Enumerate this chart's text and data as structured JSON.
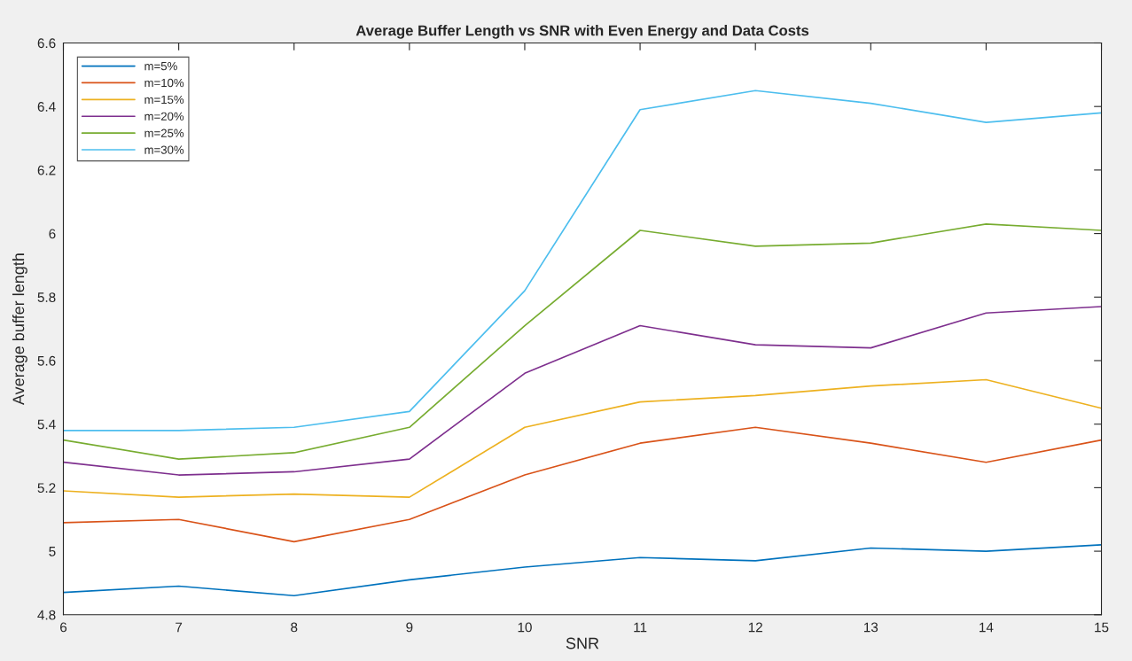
{
  "chart_data": {
    "type": "line",
    "title": "Average Buffer Length vs SNR with Even Energy and Data Costs",
    "xlabel": "SNR",
    "ylabel": "Average buffer length",
    "x": [
      6,
      7,
      8,
      9,
      10,
      11,
      12,
      13,
      14,
      15
    ],
    "series": [
      {
        "name": "m=5%",
        "color": "#0072bd",
        "values": [
          4.87,
          4.89,
          4.86,
          4.91,
          4.95,
          4.98,
          4.97,
          5.01,
          5.0,
          5.02
        ]
      },
      {
        "name": "m=10%",
        "color": "#d95319",
        "values": [
          5.09,
          5.1,
          5.03,
          5.1,
          5.24,
          5.34,
          5.39,
          5.34,
          5.28,
          5.35
        ]
      },
      {
        "name": "m=15%",
        "color": "#edb120",
        "values": [
          5.19,
          5.17,
          5.18,
          5.17,
          5.39,
          5.47,
          5.49,
          5.52,
          5.54,
          5.45
        ]
      },
      {
        "name": "m=20%",
        "color": "#7e2f8e",
        "values": [
          5.28,
          5.24,
          5.25,
          5.29,
          5.56,
          5.71,
          5.65,
          5.64,
          5.75,
          5.77
        ]
      },
      {
        "name": "m=25%",
        "color": "#77ac30",
        "values": [
          5.35,
          5.29,
          5.31,
          5.39,
          5.71,
          6.01,
          5.96,
          5.97,
          6.03,
          6.01
        ]
      },
      {
        "name": "m=30%",
        "color": "#4dbeee",
        "values": [
          5.38,
          5.38,
          5.39,
          5.44,
          5.82,
          6.39,
          6.45,
          6.41,
          6.35,
          6.38
        ]
      }
    ],
    "xlim": [
      6,
      15
    ],
    "ylim": [
      4.8,
      6.6
    ],
    "xticks": [
      6,
      7,
      8,
      9,
      10,
      11,
      12,
      13,
      14,
      15
    ],
    "yticks": [
      4.8,
      5,
      5.2,
      5.4,
      5.6,
      5.8,
      6,
      6.2,
      6.4,
      6.6
    ],
    "grid": false,
    "legend": "top left",
    "marker": "none",
    "line_style": "solid"
  }
}
